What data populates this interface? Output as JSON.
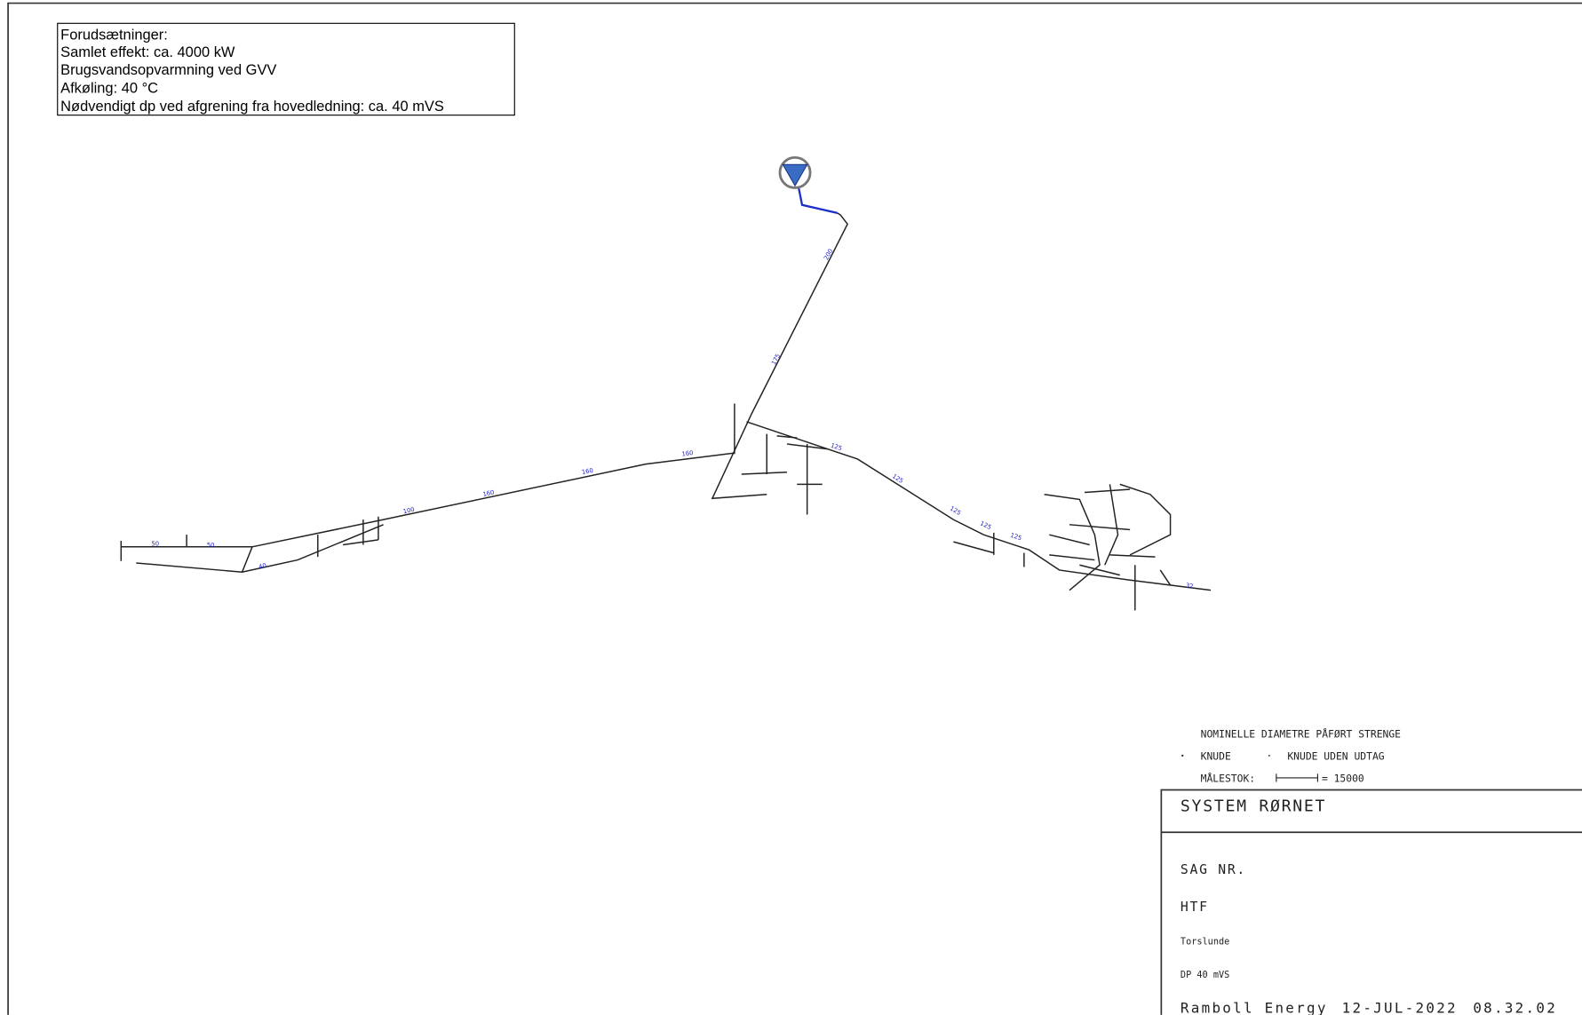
{
  "assumptions": {
    "title": "Forudsætninger:",
    "lines": [
      "Samlet effekt: ca. 4000 kW",
      "Brugsvandsopvarmning ved GVV",
      "Afkøling: 40 °C",
      "Nødvendigt dp ved afgrening fra hovedledning: ca. 40 mVS"
    ]
  },
  "pipe_labels": [
    200,
    175,
    160,
    160,
    160,
    100,
    125,
    125,
    125,
    125,
    125,
    50,
    50,
    40,
    32
  ],
  "legend": {
    "title": "NOMINELLE DIAMETRE PÅFØRT STRENGE",
    "node": "KNUDE",
    "node_no_outlet": "KNUDE UDEN UDTAG",
    "scale_label": "MÅLESTOK:",
    "scale_value": "= 15000"
  },
  "title_block": {
    "title": "SYSTEM RØRNET",
    "case_no": "SAG NR.",
    "company": "HTF",
    "place": "Torslunde",
    "dp": "DP 40 mVS",
    "author": "Ramboll Energy",
    "date": "12-JUL-2022",
    "time": "08.32.02"
  }
}
